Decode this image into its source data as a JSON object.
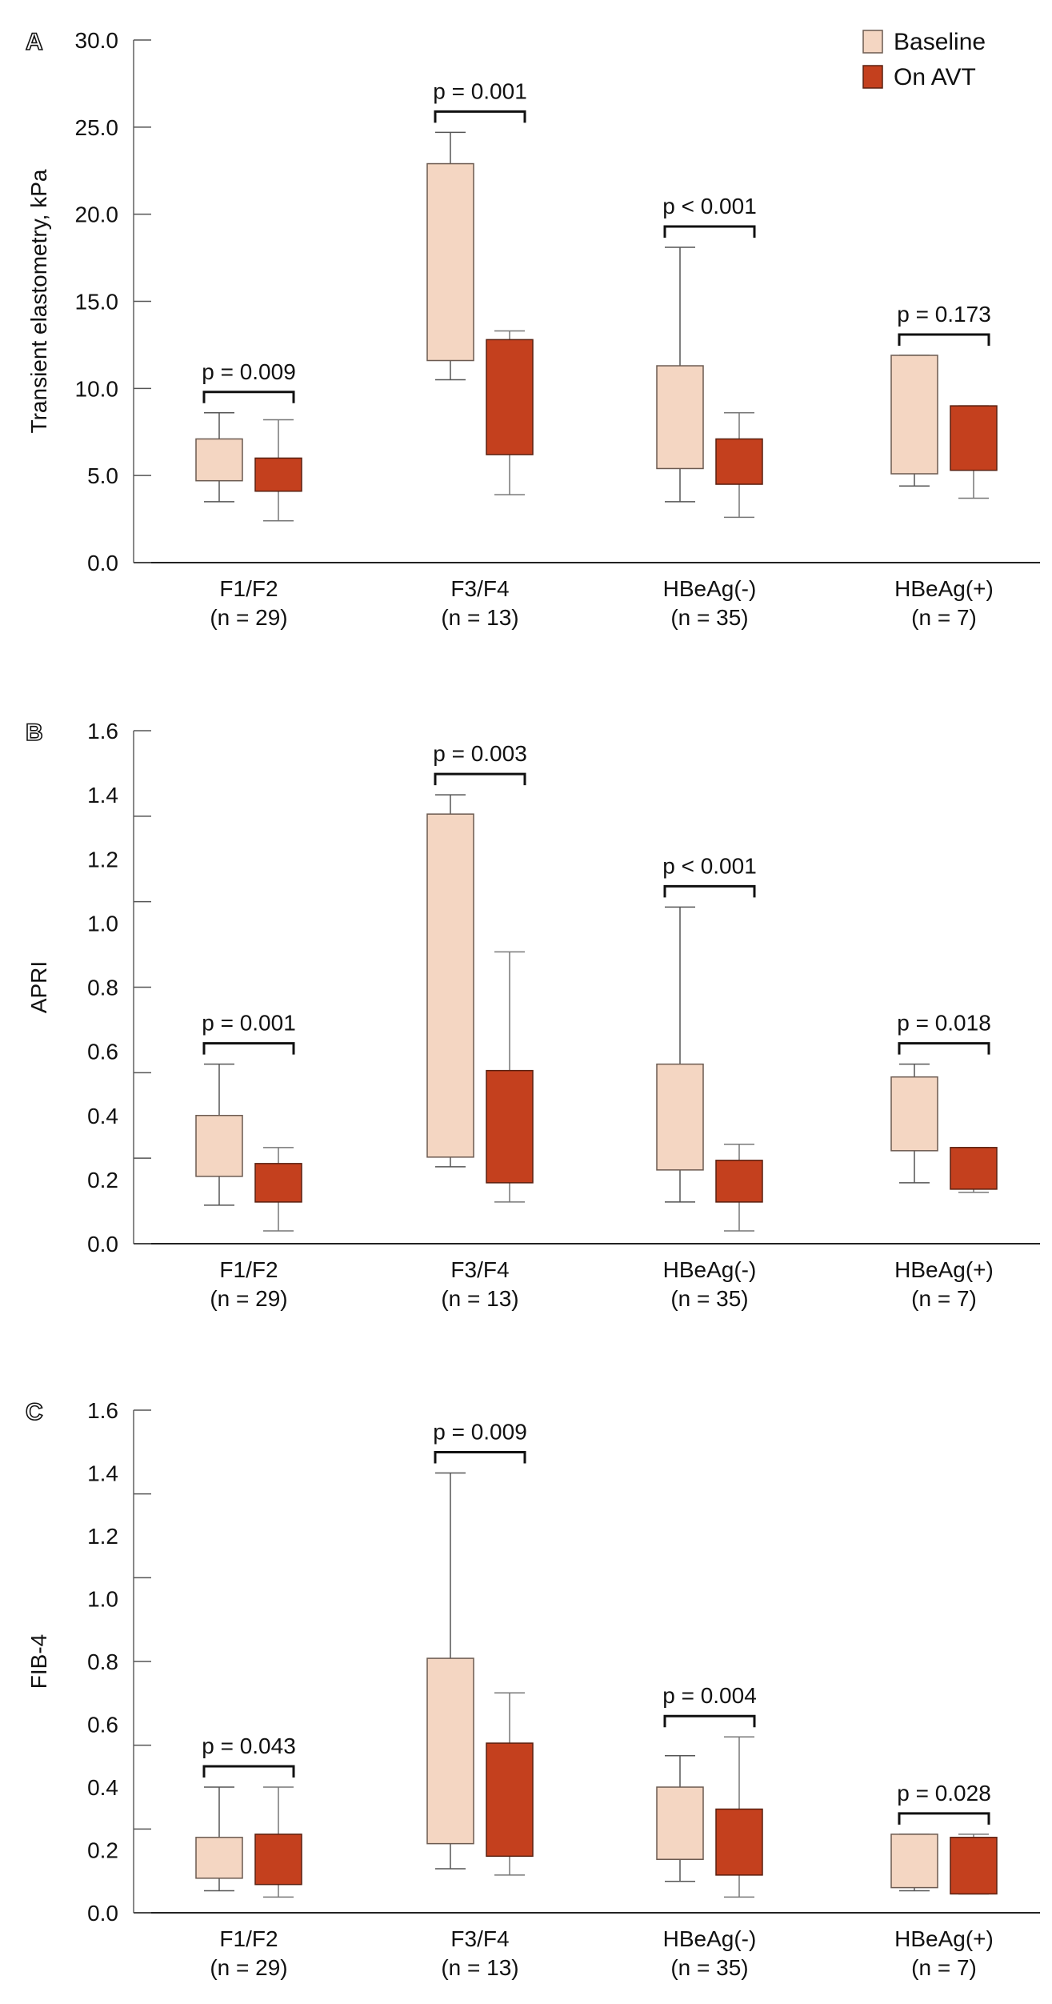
{
  "legend": [
    {
      "label": "Baseline",
      "color": "#F4D6C2",
      "stroke": "#6b5a50"
    },
    {
      "label": "On AVT",
      "color": "#C4401E",
      "stroke": "#5a2010"
    }
  ],
  "chart_data": [
    {
      "type": "box",
      "panel": "A",
      "ylabel": "Transient elastometry, kPa",
      "ylim": [
        0,
        30
      ],
      "yticks": [
        "0.0",
        "5.0",
        "10.0",
        "15.0",
        "20.0",
        "25.0",
        "30.0"
      ],
      "categories": [
        "F1/F2",
        "F3/F4",
        "HBeAg(-)",
        "HBeAg(+)"
      ],
      "category_n": [
        "(n = 29)",
        "(n = 13)",
        "(n = 35)",
        "(n = 7)"
      ],
      "p_values": [
        "p = 0.009",
        "p = 0.001",
        "p < 0.001",
        "p = 0.173"
      ],
      "series": [
        {
          "name": "Baseline",
          "boxes": [
            {
              "min": 3.5,
              "q1": 4.7,
              "q3": 7.1,
              "max": 8.6
            },
            {
              "min": 10.5,
              "q1": 11.6,
              "q3": 22.9,
              "max": 24.7
            },
            {
              "min": 3.5,
              "q1": 5.4,
              "q3": 11.3,
              "max": 18.1
            },
            {
              "min": 4.4,
              "q1": 5.1,
              "q3": 11.9,
              "max": 11.9
            }
          ]
        },
        {
          "name": "On AVT",
          "boxes": [
            {
              "min": 2.4,
              "q1": 4.1,
              "q3": 6.0,
              "max": 8.2
            },
            {
              "min": 3.9,
              "q1": 6.2,
              "q3": 12.8,
              "max": 13.3
            },
            {
              "min": 2.6,
              "q1": 4.5,
              "q3": 7.1,
              "max": 8.6
            },
            {
              "min": 3.7,
              "q1": 5.3,
              "q3": 9.0,
              "max": 9.0
            }
          ]
        }
      ]
    },
    {
      "type": "box",
      "panel": "B",
      "ylabel": "APRI",
      "ylim": [
        0,
        1.6
      ],
      "yticks": [
        "0.0",
        "0.2",
        "0.4",
        "0.6",
        "0.8",
        "1.0",
        "1.2",
        "1.4",
        "1.6"
      ],
      "categories": [
        "F1/F2",
        "F3/F4",
        "HBeAg(-)",
        "HBeAg(+)"
      ],
      "category_n": [
        "(n = 29)",
        "(n = 13)",
        "(n = 35)",
        "(n = 7)"
      ],
      "p_values": [
        "p = 0.001",
        "p = 0.003",
        "p < 0.001",
        "p = 0.018"
      ],
      "series": [
        {
          "name": "Baseline",
          "boxes": [
            {
              "min": 0.12,
              "q1": 0.21,
              "q3": 0.4,
              "max": 0.56
            },
            {
              "min": 0.24,
              "q1": 0.27,
              "q3": 1.34,
              "max": 1.4
            },
            {
              "min": 0.13,
              "q1": 0.23,
              "q3": 0.56,
              "max": 1.05
            },
            {
              "min": 0.19,
              "q1": 0.29,
              "q3": 0.52,
              "max": 0.56
            }
          ]
        },
        {
          "name": "On AVT",
          "boxes": [
            {
              "min": 0.04,
              "q1": 0.13,
              "q3": 0.25,
              "max": 0.3
            },
            {
              "min": 0.13,
              "q1": 0.19,
              "q3": 0.54,
              "max": 0.91
            },
            {
              "min": 0.04,
              "q1": 0.13,
              "q3": 0.26,
              "max": 0.31
            },
            {
              "min": 0.16,
              "q1": 0.17,
              "q3": 0.3,
              "max": 0.3
            }
          ]
        }
      ]
    },
    {
      "type": "box",
      "panel": "C",
      "ylabel": "FIB-4",
      "ylim": [
        0,
        1.6
      ],
      "yticks": [
        "0.0",
        "0.2",
        "0.4",
        "0.6",
        "0.8",
        "1.0",
        "1.2",
        "1.4",
        "1.6"
      ],
      "categories": [
        "F1/F2",
        "F3/F4",
        "HBeAg(-)",
        "HBeAg(+)"
      ],
      "category_n": [
        "(n = 29)",
        "(n = 13)",
        "(n = 35)",
        "(n = 7)"
      ],
      "p_values": [
        "p = 0.043",
        "p = 0.009",
        "p = 0.004",
        "p = 0.028"
      ],
      "series": [
        {
          "name": "Baseline",
          "boxes": [
            {
              "min": 0.07,
              "q1": 0.11,
              "q3": 0.24,
              "max": 0.4
            },
            {
              "min": 0.14,
              "q1": 0.22,
              "q3": 0.81,
              "max": 1.4
            },
            {
              "min": 0.1,
              "q1": 0.17,
              "q3": 0.4,
              "max": 0.5
            },
            {
              "min": 0.07,
              "q1": 0.08,
              "q3": 0.25,
              "max": 0.25
            }
          ]
        },
        {
          "name": "On AVT",
          "boxes": [
            {
              "min": 0.05,
              "q1": 0.09,
              "q3": 0.25,
              "max": 0.4
            },
            {
              "min": 0.12,
              "q1": 0.18,
              "q3": 0.54,
              "max": 0.7
            },
            {
              "min": 0.05,
              "q1": 0.12,
              "q3": 0.33,
              "max": 0.56
            },
            {
              "min": 0.06,
              "q1": 0.06,
              "q3": 0.24,
              "max": 0.25
            }
          ]
        }
      ]
    }
  ]
}
